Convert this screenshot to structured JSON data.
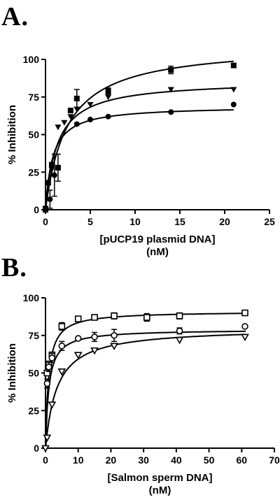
{
  "chart_data": [
    {
      "panel_label": "A.",
      "type": "scatter",
      "xlabel_lines": [
        "[pUCP19 plasmid DNA]",
        "(nM)"
      ],
      "ylabel": "% Inhibition",
      "xlim": [
        0,
        25
      ],
      "ylim": [
        0,
        100
      ],
      "xticks": [
        0,
        5,
        10,
        15,
        20,
        25
      ],
      "yticks": [
        0,
        25,
        50,
        75,
        100
      ],
      "grid": false,
      "series": [
        {
          "marker": "filled-square",
          "points": [
            {
              "x": 0,
              "y": 0
            },
            {
              "x": 0.3,
              "y": 18
            },
            {
              "x": 0.7,
              "y": 30
            },
            {
              "x": 1.4,
              "y": 28,
              "err": 9
            },
            {
              "x": 2.8,
              "y": 66
            },
            {
              "x": 3.5,
              "y": 74,
              "err": 6
            },
            {
              "x": 7,
              "y": 79,
              "err": 2
            },
            {
              "x": 14,
              "y": 93,
              "err": 2.5
            },
            {
              "x": 21,
              "y": 96
            }
          ],
          "fit": {
            "bmax": 110,
            "kd": 2.4
          }
        },
        {
          "marker": "filled-triangle-down",
          "points": [
            {
              "x": 0,
              "y": 1
            },
            {
              "x": 0.7,
              "y": 27
            },
            {
              "x": 1.4,
              "y": 55
            },
            {
              "x": 2.1,
              "y": 58
            },
            {
              "x": 2.8,
              "y": 62
            },
            {
              "x": 3.5,
              "y": 67
            },
            {
              "x": 5,
              "y": 70
            },
            {
              "x": 7,
              "y": 75
            },
            {
              "x": 14,
              "y": 80
            },
            {
              "x": 21,
              "y": 80
            }
          ],
          "fit": {
            "bmax": 86,
            "kd": 1.3
          }
        },
        {
          "marker": "filled-circle",
          "points": [
            {
              "x": 0,
              "y": 1
            },
            {
              "x": 0.5,
              "y": 7,
              "err": 6
            },
            {
              "x": 1,
              "y": 23,
              "err": 14
            },
            {
              "x": 3.5,
              "y": 57
            },
            {
              "x": 5,
              "y": 60
            },
            {
              "x": 7,
              "y": 62
            },
            {
              "x": 14,
              "y": 65
            },
            {
              "x": 21,
              "y": 70
            }
          ],
          "fit": {
            "bmax": 69,
            "kd": 0.8
          }
        }
      ]
    },
    {
      "panel_label": "B.",
      "type": "scatter",
      "xlabel_lines": [
        "[Salmon sperm DNA]",
        "(nM)"
      ],
      "ylabel": "% Inhibition",
      "xlim": [
        0,
        70
      ],
      "ylim": [
        0,
        100
      ],
      "xticks": [
        0,
        10,
        20,
        30,
        40,
        50,
        60,
        70
      ],
      "yticks": [
        0,
        25,
        50,
        75,
        100
      ],
      "grid": false,
      "series": [
        {
          "marker": "open-square",
          "points": [
            {
              "x": 0.5,
              "y": 50
            },
            {
              "x": 1,
              "y": 56
            },
            {
              "x": 2,
              "y": 62
            },
            {
              "x": 5,
              "y": 81,
              "err": 2.5
            },
            {
              "x": 10,
              "y": 86
            },
            {
              "x": 15,
              "y": 87
            },
            {
              "x": 21,
              "y": 88,
              "err": 2
            },
            {
              "x": 31,
              "y": 87,
              "err": 2.5
            },
            {
              "x": 41,
              "y": 88,
              "err": 2
            },
            {
              "x": 61,
              "y": 90,
              "err": 1.5
            }
          ],
          "fit": {
            "bmax": 91,
            "kd": 0.9
          }
        },
        {
          "marker": "open-circle",
          "points": [
            {
              "x": 0.5,
              "y": 43,
              "err": 3
            },
            {
              "x": 1,
              "y": 54,
              "err": 3
            },
            {
              "x": 2,
              "y": 60,
              "err": 3
            },
            {
              "x": 5,
              "y": 68,
              "err": 3
            },
            {
              "x": 10,
              "y": 73
            },
            {
              "x": 15,
              "y": 74,
              "err": 3
            },
            {
              "x": 21,
              "y": 75,
              "err": 4
            },
            {
              "x": 41,
              "y": 78,
              "err": 2
            },
            {
              "x": 61,
              "y": 81
            }
          ],
          "fit": {
            "bmax": 79,
            "kd": 1.0
          }
        },
        {
          "marker": "open-triangle-down",
          "points": [
            {
              "x": 0,
              "y": 0
            },
            {
              "x": 0.5,
              "y": 7
            },
            {
              "x": 2,
              "y": 29
            },
            {
              "x": 5,
              "y": 51
            },
            {
              "x": 10,
              "y": 62
            },
            {
              "x": 15,
              "y": 65
            },
            {
              "x": 21,
              "y": 68
            },
            {
              "x": 41,
              "y": 72
            },
            {
              "x": 61,
              "y": 74
            }
          ],
          "fit": {
            "bmax": 80,
            "kd": 3.5
          }
        }
      ]
    }
  ]
}
